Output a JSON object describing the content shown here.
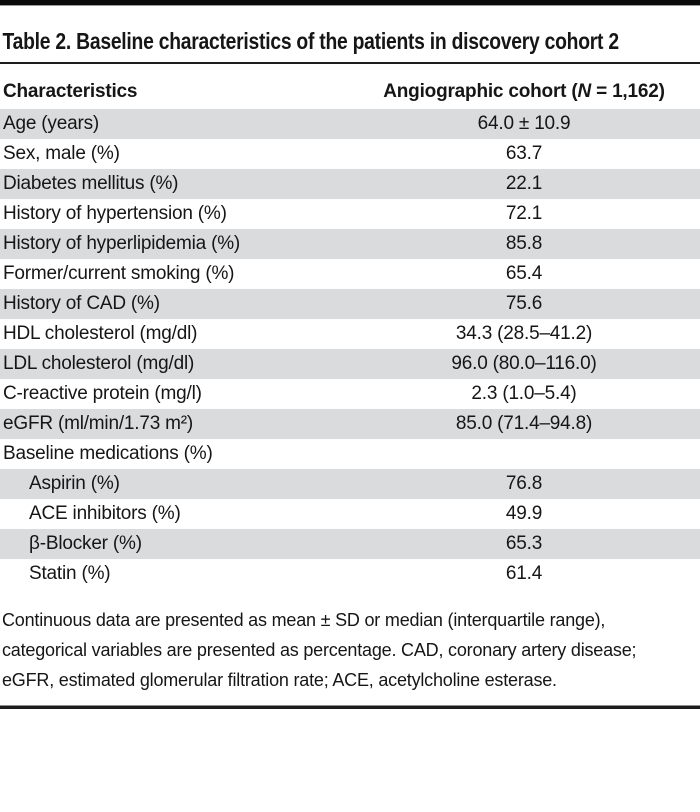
{
  "title": "Table 2. Baseline characteristics of the patients in discovery cohort 2",
  "table": {
    "header": {
      "col_characteristics": "Characteristics",
      "col_cohort_prefix": "Angiographic cohort (",
      "col_cohort_n": "N",
      "col_cohort_suffix": " = 1,162)"
    },
    "rows": [
      {
        "label": "Age (years)",
        "value": "64.0 ± 10.9",
        "indent": false
      },
      {
        "label": "Sex, male (%)",
        "value": "63.7",
        "indent": false
      },
      {
        "label": "Diabetes mellitus (%)",
        "value": "22.1",
        "indent": false
      },
      {
        "label": "History of hypertension (%)",
        "value": "72.1",
        "indent": false
      },
      {
        "label": "History of hyperlipidemia (%)",
        "value": "85.8",
        "indent": false
      },
      {
        "label": "Former/current smoking (%)",
        "value": "65.4",
        "indent": false
      },
      {
        "label": "History of CAD (%)",
        "value": "75.6",
        "indent": false
      },
      {
        "label": "HDL cholesterol (mg/dl)",
        "value": "34.3 (28.5–41.2)",
        "indent": false
      },
      {
        "label": "LDL cholesterol (mg/dl)",
        "value": "96.0 (80.0–116.0)",
        "indent": false
      },
      {
        "label": "C-reactive protein (mg/l)",
        "value": "2.3 (1.0–5.4)",
        "indent": false
      },
      {
        "label": "eGFR (ml/min/1.73 m²)",
        "value": "85.0 (71.4–94.8)",
        "indent": false
      },
      {
        "label": "Baseline medications (%)",
        "value": "",
        "indent": false
      },
      {
        "label": "Aspirin (%)",
        "value": "76.8",
        "indent": true
      },
      {
        "label": "ACE inhibitors (%)",
        "value": "49.9",
        "indent": true
      },
      {
        "label": "β-Blocker (%)",
        "value": "65.3",
        "indent": true
      },
      {
        "label": "Statin (%)",
        "value": "61.4",
        "indent": true
      }
    ]
  },
  "footnote": {
    "lines": [
      "Continuous data are presented as mean ± SD or median (interquartile range),",
      "categorical variables are presented as percentage. CAD, coronary artery disease;",
      "eGFR, estimated glomerular filtration rate; ACE, acetylcholine esterase."
    ]
  },
  "colors": {
    "stripe": "#d9dbdc",
    "rule": "#1c1c1c",
    "text": "#161616"
  }
}
